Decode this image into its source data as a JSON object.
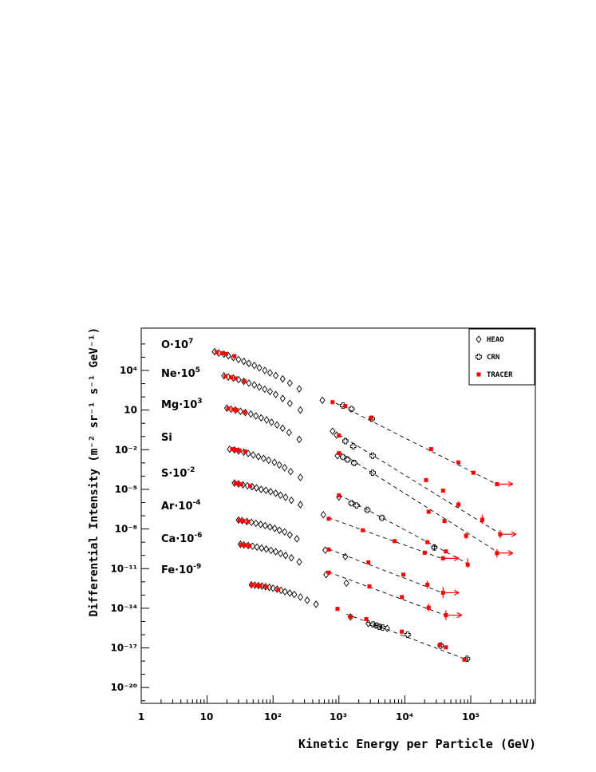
{
  "chart_data": {
    "type": "scatter",
    "xlabel": "Kinetic Energy per Particle (GeV)",
    "ylabel": "Differential Intensity (m⁻² sr⁻¹ s⁻¹ GeV⁻¹)",
    "x_scale": "log",
    "y_scale": "log",
    "xlim": [
      1,
      1000000
    ],
    "ylim": [
      1e-21,
      10000000.0
    ],
    "x_tick_labels": [
      "1",
      "10",
      "10²",
      "10³",
      "10⁴",
      "10⁵"
    ],
    "y_tick_labels": [
      "10⁴",
      "10",
      "10⁻²",
      "10⁻⁵",
      "10⁻⁸",
      "10⁻¹¹",
      "10⁻¹⁴",
      "10⁻¹⁷",
      "10⁻²⁰"
    ],
    "legend": {
      "placement": "top-right",
      "entries": [
        {
          "name": "HEAO",
          "marker": "open-diamond",
          "color": "#000000"
        },
        {
          "name": "CRN",
          "marker": "open-cross",
          "color": "#000000"
        },
        {
          "name": "TRACER",
          "marker": "filled-square",
          "color": "#ff0000"
        }
      ]
    },
    "arrow_color": "#ff0000",
    "elements": [
      {
        "label": "O·10⁷",
        "heao": [
          [
            13,
            260000.0
          ],
          [
            15,
            210000.0
          ],
          [
            18,
            170000.0
          ],
          [
            21,
            130000.0
          ],
          [
            25,
            95000.0
          ],
          [
            30,
            68000.0
          ],
          [
            36,
            49000.0
          ],
          [
            43,
            34000.0
          ],
          [
            52,
            24000.0
          ],
          [
            62,
            16000.0
          ],
          [
            75,
            10000.0
          ],
          [
            90,
            6600.0
          ],
          [
            110,
            4100.0
          ],
          [
            140,
            2300.0
          ],
          [
            180,
            1100.0
          ],
          [
            250,
            400
          ],
          [
            560,
            55
          ]
        ],
        "crn": [
          [
            1150,
            22
          ],
          [
            1550,
            12
          ],
          [
            3150,
            2.2
          ]
        ],
        "tracer": [
          [
            14,
            240000.0
          ],
          [
            17,
            200000.0
          ],
          [
            19.5,
            180000.0
          ],
          [
            26,
            120000.0
          ],
          [
            800,
            40
          ],
          [
            1250,
            20
          ],
          [
            3050,
            2.5
          ],
          [
            25000,
            0.011
          ],
          [
            65000,
            0.0011
          ],
          [
            110000,
            0.00018
          ],
          [
            250000,
            2.5e-05
          ]
        ],
        "tracer_err": [
          [
            250000,
            3.2e-05,
            1.9e-05
          ]
        ],
        "arrows": [
          250000
        ],
        "fit": [
          [
            900,
            33
          ],
          [
            280000,
            1.8e-05
          ]
        ]
      },
      {
        "label": "Ne·10⁵",
        "heao": [
          [
            18,
            4000.0
          ],
          [
            21,
            3200.0
          ],
          [
            25,
            2600.0
          ],
          [
            30,
            2000.0
          ],
          [
            36,
            1500.0
          ],
          [
            43,
            1100.0
          ],
          [
            52,
            800
          ],
          [
            62,
            560
          ],
          [
            75,
            380
          ],
          [
            90,
            250
          ],
          [
            110,
            150
          ],
          [
            140,
            75
          ],
          [
            180,
            32
          ],
          [
            260,
            10
          ],
          [
            800,
            0.25
          ],
          [
            920,
            0.13
          ]
        ],
        "crn": [
          [
            1250,
            0.045
          ],
          [
            1650,
            0.018
          ],
          [
            3250,
            0.0035
          ]
        ],
        "tracer": [
          [
            19,
            3600.0
          ],
          [
            23,
            3000.0
          ],
          [
            27,
            2500.0
          ],
          [
            37,
            1500.0
          ],
          [
            1000,
            0.12
          ],
          [
            21000,
            5e-05
          ],
          [
            38000,
            8e-06
          ],
          [
            65000,
            7e-07
          ],
          [
            150000,
            5e-08
          ],
          [
            280000,
            4e-09
          ]
        ],
        "tracer_err": [
          [
            21000,
            7e-05,
            3.5e-05
          ],
          [
            65000,
            1.2e-06,
            4e-07
          ],
          [
            150000,
            1.2e-07,
            2.5e-08
          ],
          [
            280000,
            8e-09,
            2e-09
          ]
        ],
        "arrows": [
          280000
        ],
        "fit": [
          [
            1000,
            0.14
          ],
          [
            300000,
            3.5e-09
          ]
        ]
      },
      {
        "label": "Mg·10³",
        "heao": [
          [
            20,
            14
          ],
          [
            23,
            12
          ],
          [
            27,
            10
          ],
          [
            32,
            8
          ],
          [
            38,
            6.5
          ],
          [
            46,
            5.0
          ],
          [
            55,
            3.6
          ],
          [
            66,
            2.6
          ],
          [
            80,
            1.8
          ],
          [
            95,
            1.2
          ],
          [
            115,
            0.75
          ],
          [
            140,
            0.42
          ],
          [
            175,
            0.2
          ],
          [
            250,
            0.06
          ],
          [
            950,
            0.0035
          ]
        ],
        "crn": [
          [
            1150,
            0.0028
          ],
          [
            1350,
            0.0018
          ],
          [
            1700,
            0.001
          ],
          [
            3250,
            0.00018
          ]
        ],
        "tracer": [
          [
            21,
            13
          ],
          [
            25,
            11
          ],
          [
            28,
            10
          ],
          [
            37,
            7
          ],
          [
            1000,
            0.0055
          ],
          [
            23000,
            2e-07
          ],
          [
            40000,
            4e-08
          ],
          [
            85000,
            3e-09
          ],
          [
            250000,
            1.5e-10
          ]
        ],
        "tracer_err": [
          [
            23000,
            2.4e-07,
            1.7e-07
          ],
          [
            85000,
            5e-09,
            1.8e-09
          ],
          [
            250000,
            3e-10,
            7e-11
          ]
        ],
        "arrows": [
          250000
        ],
        "fit": [
          [
            1000,
            0.007
          ],
          [
            270000,
            1.5e-10
          ]
        ]
      },
      {
        "label": "Si",
        "heao": [
          [
            22,
            0.011
          ],
          [
            26,
            0.0095
          ],
          [
            30,
            0.008
          ],
          [
            36,
            0.0065
          ],
          [
            42,
            0.0052
          ],
          [
            50,
            0.004
          ],
          [
            60,
            0.003
          ],
          [
            72,
            0.0022
          ],
          [
            86,
            0.0016
          ],
          [
            105,
            0.0011
          ],
          [
            125,
            0.0007
          ],
          [
            150,
            0.00043
          ],
          [
            185,
            0.00022
          ],
          [
            260,
            8e-05
          ],
          [
            1000,
            2.6e-06
          ]
        ],
        "crn": [
          [
            1550,
            9e-07
          ],
          [
            1850,
            6e-07
          ],
          [
            2700,
            2.8e-07
          ],
          [
            4500,
            7e-08
          ],
          [
            28000,
            4e-10
          ]
        ],
        "crn_err": [
          [
            28000,
            7e-10,
            2.3e-10
          ]
        ],
        "tracer": [
          [
            24,
            0.011
          ],
          [
            27,
            0.0097
          ],
          [
            31,
            0.0087
          ],
          [
            38,
            0.0072
          ],
          [
            1000,
            3.5e-06
          ],
          [
            22000,
            1e-09
          ],
          [
            42000,
            2e-10
          ],
          [
            90000,
            2e-11
          ]
        ],
        "tracer_err": [
          [
            42000,
            2.5e-10,
            1.6e-10
          ],
          [
            90000,
            6e-11,
            1.2e-11
          ]
        ],
        "arrows": [],
        "fit": [
          [
            1000,
            4e-06
          ],
          [
            100000,
            1.8e-11
          ]
        ]
      },
      {
        "label": "S·10⁻²",
        "heao": [
          [
            26,
            3e-05
          ],
          [
            30,
            2.6e-05
          ],
          [
            35,
            2.2e-05
          ],
          [
            41,
            1.9e-05
          ],
          [
            48,
            1.6e-05
          ],
          [
            56,
            1.3e-05
          ],
          [
            66,
            1e-05
          ],
          [
            78,
            8.5e-06
          ],
          [
            92,
            6.6e-06
          ],
          [
            110,
            5e-06
          ],
          [
            130,
            3.6e-06
          ],
          [
            155,
            2.5e-06
          ],
          [
            190,
            1.5e-06
          ],
          [
            260,
            7e-07
          ],
          [
            580,
            1.2e-07
          ]
        ],
        "crn": [],
        "tracer": [
          [
            27,
            2.9e-05
          ],
          [
            29,
            2.7e-05
          ],
          [
            33,
            2.4e-05
          ],
          [
            45,
            1.8e-05
          ],
          [
            700,
            6e-08
          ],
          [
            2300,
            8e-09
          ],
          [
            7000,
            1.2e-09
          ],
          [
            20000,
            1.6e-10
          ],
          [
            38000,
            6e-11
          ]
        ],
        "tracer_err": [
          [
            20000,
            2.2e-10,
            1.2e-10
          ],
          [
            38000,
            9e-11,
            4.5e-11
          ]
        ],
        "arrows": [
          38000
        ],
        "fit": [
          [
            700,
            7e-08
          ],
          [
            40000,
            5e-11
          ]
        ]
      },
      {
        "label": "Ar·10⁻⁴",
        "heao": [
          [
            30,
            4.8e-08
          ],
          [
            34,
            4.3e-08
          ],
          [
            40,
            3.7e-08
          ],
          [
            47,
            3.2e-08
          ],
          [
            55,
            2.7e-08
          ],
          [
            65,
            2.2e-08
          ],
          [
            76,
            1.8e-08
          ],
          [
            90,
            1.4e-08
          ],
          [
            106,
            1.1e-08
          ],
          [
            125,
            8e-09
          ],
          [
            150,
            6e-09
          ],
          [
            180,
            3.6e-09
          ],
          [
            230,
            1.8e-09
          ],
          [
            620,
            2.5e-10
          ],
          [
            1250,
            8e-11
          ]
        ],
        "crn": [],
        "tracer": [
          [
            31,
            4.5e-08
          ],
          [
            35,
            4.1e-08
          ],
          [
            42,
            3.5e-08
          ],
          [
            700,
            2.8e-10
          ],
          [
            2800,
            3e-11
          ],
          [
            9500,
            3.5e-12
          ],
          [
            22000,
            6e-13
          ],
          [
            38000,
            1.5e-13
          ]
        ],
        "tracer_err": [
          [
            22000,
            1.2e-12,
            3e-13
          ],
          [
            38000,
            4e-13,
            6e-14
          ]
        ],
        "arrows": [
          38000
        ],
        "fit": [
          [
            700,
            3e-10
          ],
          [
            40000,
            1.3e-13
          ]
        ]
      },
      {
        "label": "Ca·10⁻⁶",
        "heao": [
          [
            32,
            7e-10
          ],
          [
            36,
            6.3e-10
          ],
          [
            42,
            5.6e-10
          ],
          [
            49,
            5e-10
          ],
          [
            57,
            4.3e-10
          ],
          [
            67,
            3.6e-10
          ],
          [
            79,
            3e-10
          ],
          [
            93,
            2.4e-10
          ],
          [
            110,
            1.9e-10
          ],
          [
            130,
            1.4e-10
          ],
          [
            155,
            1e-10
          ],
          [
            190,
            6.5e-11
          ],
          [
            250,
            3.2e-11
          ],
          [
            640,
            3.5e-12
          ],
          [
            1300,
            8e-13
          ]
        ],
        "crn": [],
        "tracer": [
          [
            33,
            6.6e-10
          ],
          [
            38,
            6e-10
          ],
          [
            44,
            5.3e-10
          ],
          [
            700,
            5e-12
          ],
          [
            2900,
            4.5e-13
          ],
          [
            9000,
            7e-14
          ],
          [
            23000,
            1.1e-14
          ],
          [
            42000,
            3e-15
          ]
        ],
        "tracer_err": [
          [
            23000,
            2.2e-14,
            6e-15
          ],
          [
            42000,
            7e-15,
            1.3e-15
          ]
        ],
        "arrows": [
          42000
        ],
        "fit": [
          [
            700,
            5.5e-12
          ],
          [
            45000,
            2.5e-15
          ]
        ]
      },
      {
        "label": "Fe·10⁻⁹",
        "heao": [
          [
            47,
            6e-13
          ],
          [
            53,
            5.6e-13
          ],
          [
            60,
            5.2e-13
          ],
          [
            68,
            4.8e-13
          ],
          [
            77,
            4.3e-13
          ],
          [
            88,
            3.8e-13
          ],
          [
            100,
            3.3e-13
          ],
          [
            115,
            2.8e-13
          ],
          [
            132,
            2.3e-13
          ],
          [
            152,
            1.8e-13
          ],
          [
            180,
            1.4e-13
          ],
          [
            210,
            1.1e-13
          ],
          [
            260,
            7e-14
          ],
          [
            330,
            4e-14
          ],
          [
            450,
            2e-14
          ],
          [
            1500,
            2.2e-15
          ],
          [
            2800,
            7e-16
          ],
          [
            5400,
            3e-16
          ]
        ],
        "crn": [
          [
            3300,
            6e-16
          ],
          [
            3700,
            5e-16
          ],
          [
            4100,
            4e-16
          ],
          [
            4600,
            3.5e-16
          ],
          [
            11000,
            1e-16
          ],
          [
            35000,
            1.5e-17
          ],
          [
            88000,
            1.5e-18
          ]
        ],
        "crn_err": [
          [
            88000,
            2e-18,
            1e-18
          ]
        ],
        "tracer": [
          [
            48,
            6e-13
          ],
          [
            56,
            5.4e-13
          ],
          [
            64,
            5e-13
          ],
          [
            80,
            4.1e-13
          ],
          [
            120,
            2.6e-13
          ],
          [
            950,
            9e-15
          ],
          [
            1500,
            2.3e-15
          ],
          [
            2600,
            1.5e-15
          ],
          [
            9000,
            1.7e-16
          ],
          [
            34000,
            1.7e-17
          ],
          [
            42000,
            1.1e-17
          ],
          [
            80000,
            1.3e-18
          ]
        ],
        "tracer_err": [
          [
            950,
            1.1e-14,
            7e-15
          ]
        ],
        "arrows": [],
        "fit": [
          [
            1300,
            3.6e-15
          ],
          [
            90000,
            1.2e-18
          ]
        ]
      }
    ]
  }
}
